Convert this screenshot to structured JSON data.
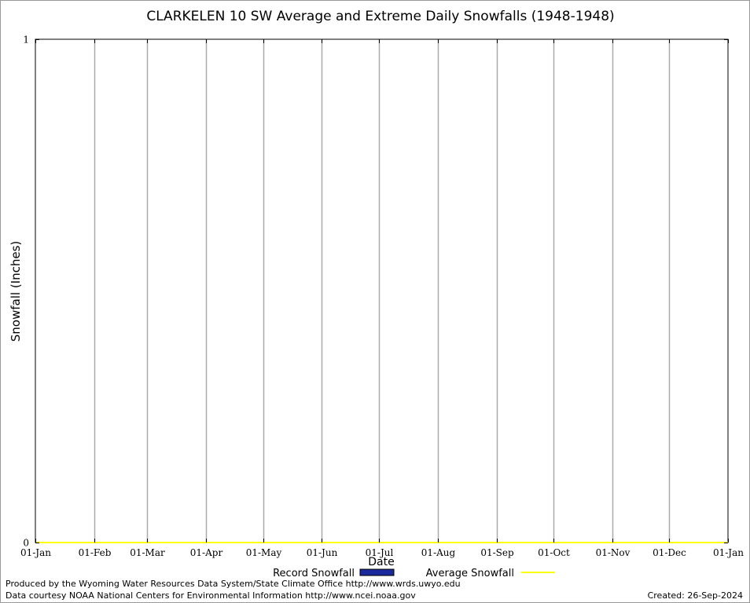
{
  "chart_data": {
    "type": "bar",
    "title": "CLARKELEN 10 SW Average and Extreme Daily Snowfalls (1948-1948)",
    "xlabel": "Date",
    "ylabel": "Snowfall (Inches)",
    "ylim": [
      0,
      1
    ],
    "y_ticks": [
      "0",
      "1"
    ],
    "x_ticks": [
      "01-Jan",
      "01-Feb",
      "01-Mar",
      "01-Apr",
      "01-May",
      "01-Jun",
      "01-Jul",
      "01-Aug",
      "01-Sep",
      "01-Oct",
      "01-Nov",
      "01-Dec",
      "01-Jan"
    ],
    "x_tick_days": [
      0,
      31,
      59,
      90,
      120,
      151,
      181,
      212,
      243,
      273,
      304,
      334,
      365
    ],
    "days_in_year": 365,
    "grid": "vertical",
    "legend_position": "bottom",
    "series": [
      {
        "name": "Record Snowfall",
        "kind": "bar",
        "color": "#1a2a9c",
        "values": []
      },
      {
        "name": "Average Snowfall",
        "kind": "line",
        "color": "#ffff00",
        "values": [
          0
        ]
      }
    ]
  },
  "footer": {
    "line1": "Produced by the Wyoming Water Resources Data System/State Climate Office http://www.wrds.uwyo.edu",
    "line2": "Data courtesy NOAA National Centers for Environmental Information http://www.ncei.noaa.gov",
    "created": "Created: 26-Sep-2024"
  }
}
